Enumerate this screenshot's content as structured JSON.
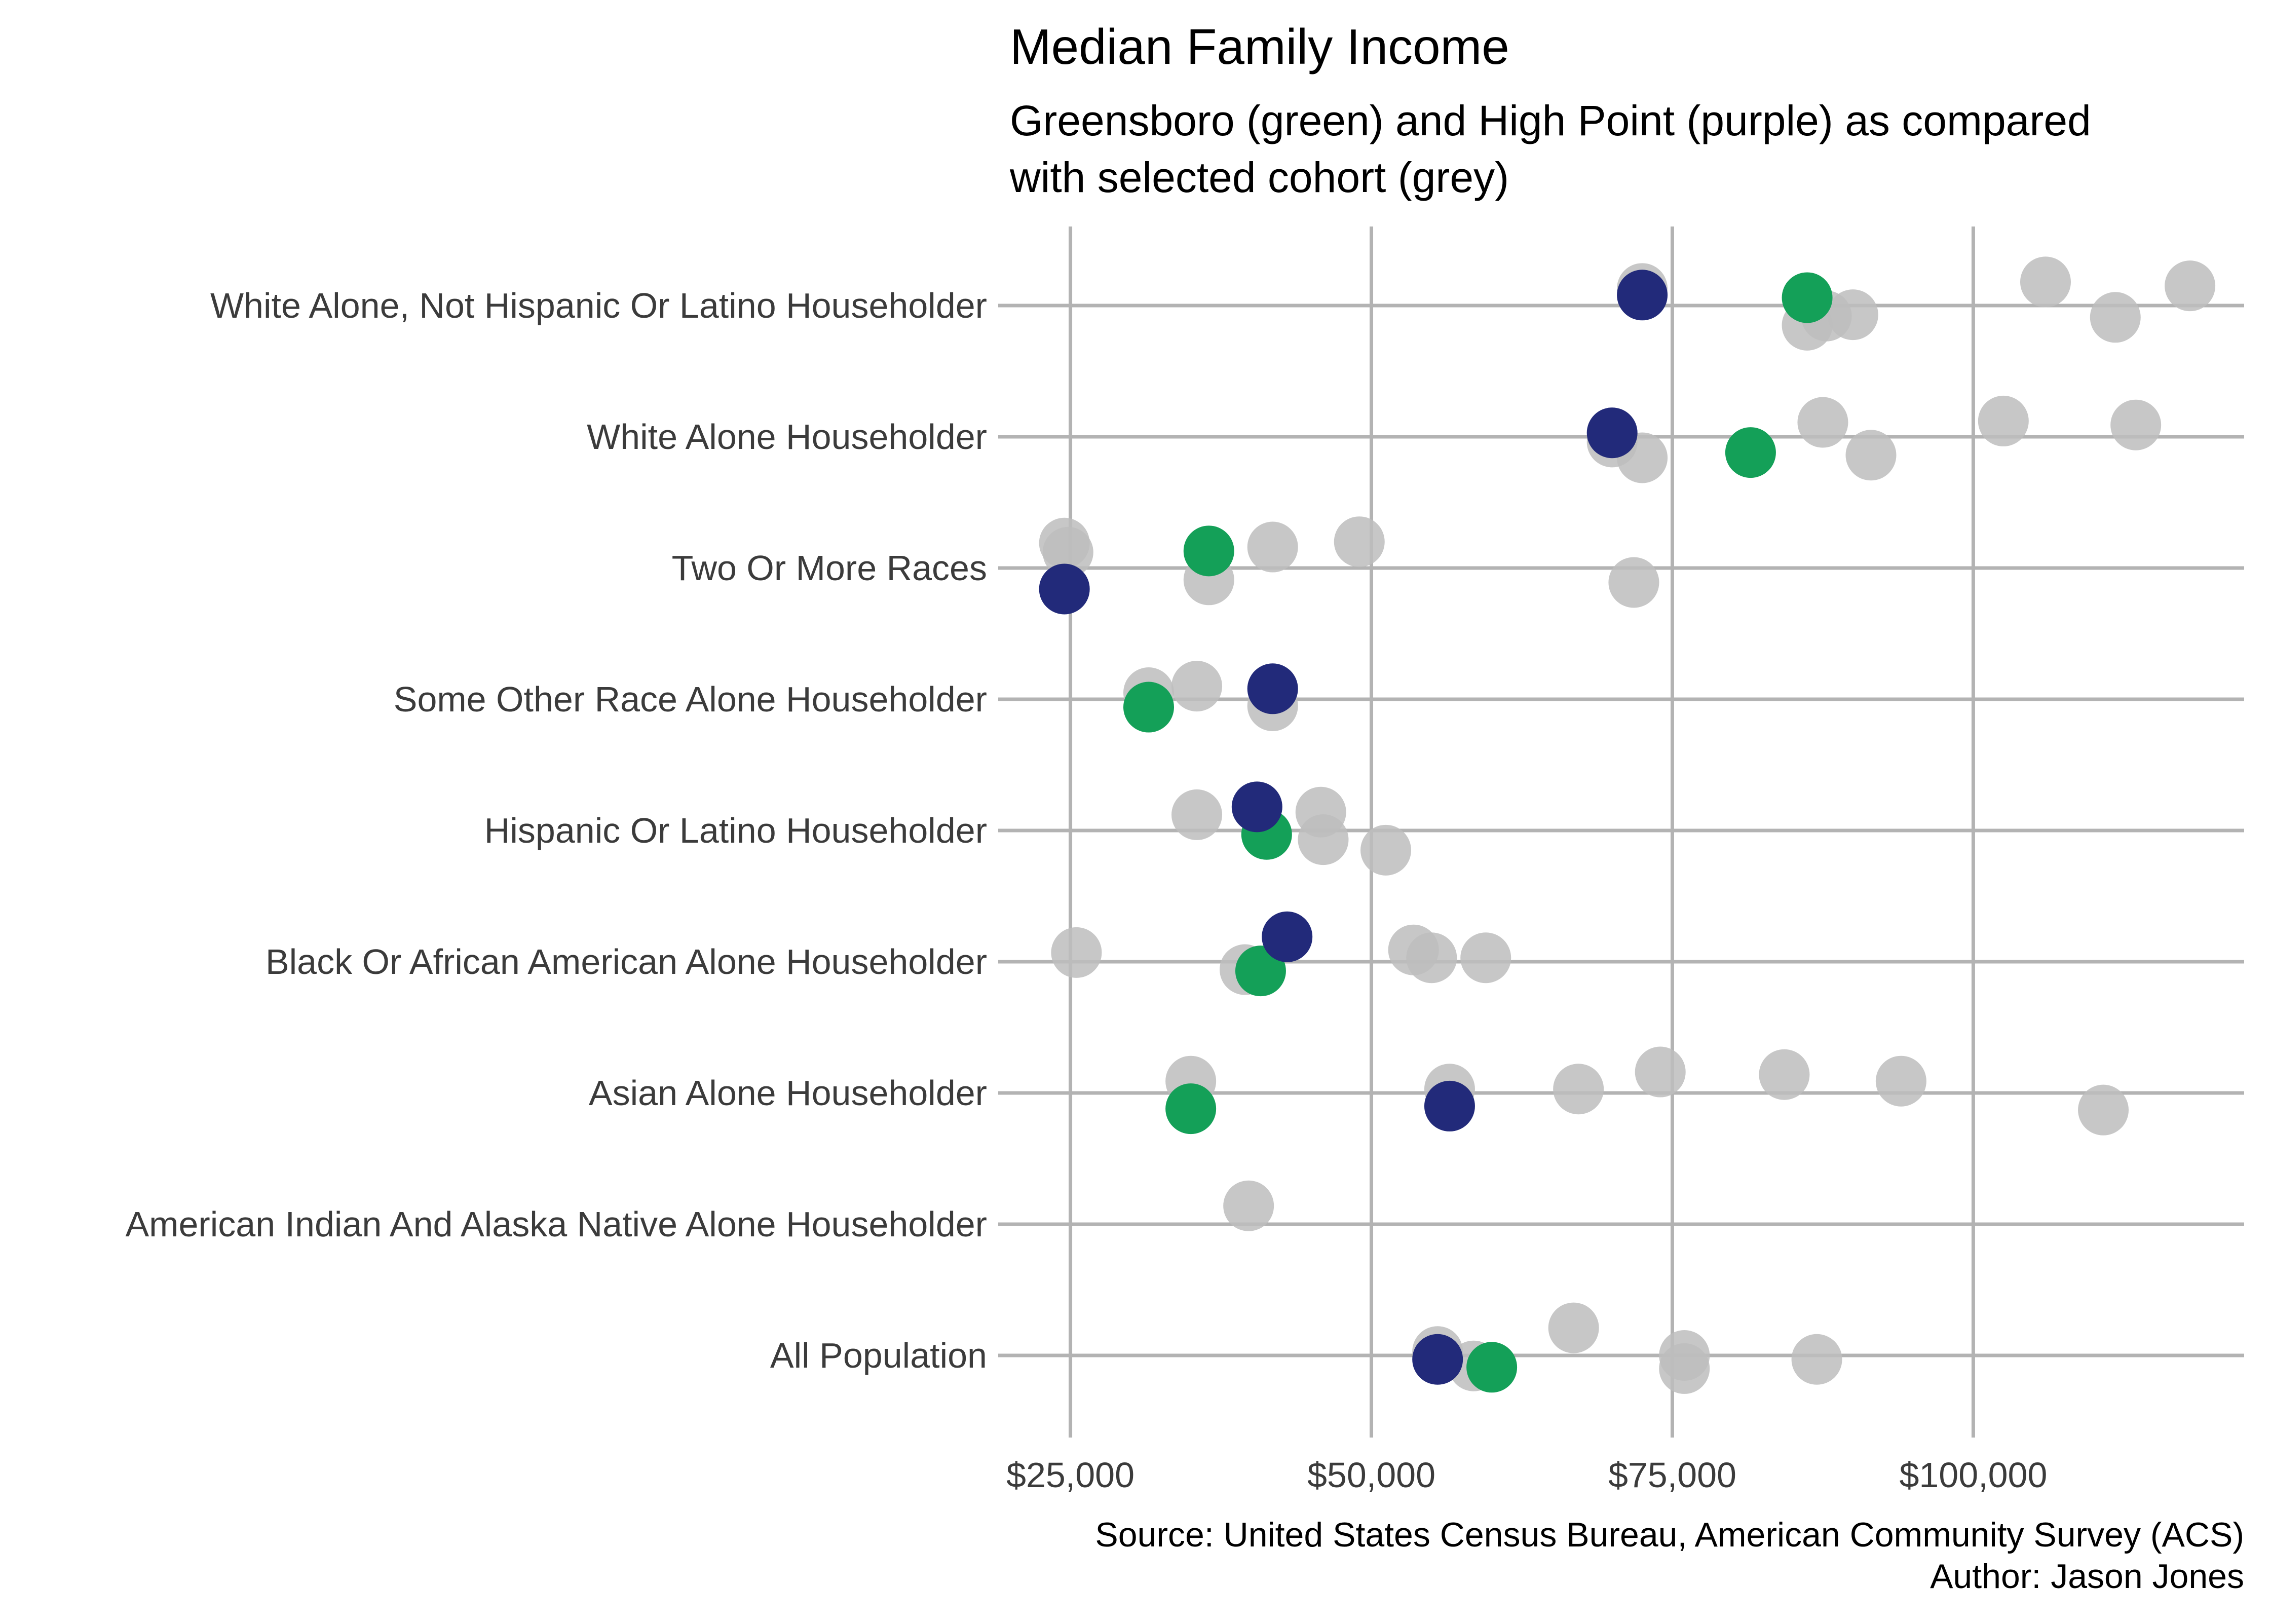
{
  "chart_data": {
    "type": "scatter",
    "title": "Median Family Income",
    "subtitle_lines": [
      "Greensboro (green) and High Point (purple) as compared",
      "with selected cohort (grey)"
    ],
    "caption_lines": [
      "Source: United States Census Bureau, American Community Survey (ACS)",
      "Author: Jason Jones"
    ],
    "categories": [
      "White Alone, Not Hispanic Or Latino Householder",
      "White Alone Householder",
      "Two Or More Races",
      "Some Other Race Alone Householder",
      "Hispanic Or Latino Householder",
      "Black Or African American Alone Householder",
      "Asian Alone Householder",
      "American Indian And Alaska Native Alone Householder",
      "All Population"
    ],
    "x_ticks": [
      {
        "value": 25000,
        "label": "$25,000"
      },
      {
        "value": 50000,
        "label": "$50,000"
      },
      {
        "value": 75000,
        "label": "$75,000"
      },
      {
        "value": 100000,
        "label": "$100,000"
      }
    ],
    "xlim": [
      19000,
      122500
    ],
    "grid": true,
    "colors": {
      "cohort": "#bdbdbd",
      "greensboro": "#14a058",
      "high_point": "#222a7a",
      "grid": "#b3b3b3"
    },
    "series": [
      {
        "key": "cohort",
        "color": "#bdbdbd",
        "points": [
          {
            "cat": 0,
            "x": 72500,
            "jitter": 0.13
          },
          {
            "cat": 0,
            "x": 86200,
            "jitter": -0.15
          },
          {
            "cat": 0,
            "x": 87800,
            "jitter": -0.08
          },
          {
            "cat": 0,
            "x": 90000,
            "jitter": -0.07
          },
          {
            "cat": 0,
            "x": 106000,
            "jitter": 0.18
          },
          {
            "cat": 0,
            "x": 111800,
            "jitter": -0.09
          },
          {
            "cat": 0,
            "x": 118000,
            "jitter": 0.15
          },
          {
            "cat": 1,
            "x": 70000,
            "jitter": -0.04
          },
          {
            "cat": 1,
            "x": 72500,
            "jitter": -0.16
          },
          {
            "cat": 1,
            "x": 87500,
            "jitter": 0.11
          },
          {
            "cat": 1,
            "x": 91500,
            "jitter": -0.14
          },
          {
            "cat": 1,
            "x": 102500,
            "jitter": 0.12
          },
          {
            "cat": 1,
            "x": 113500,
            "jitter": 0.09
          },
          {
            "cat": 2,
            "x": 24500,
            "jitter": 0.19
          },
          {
            "cat": 2,
            "x": 24800,
            "jitter": 0.12
          },
          {
            "cat": 2,
            "x": 36500,
            "jitter": -0.09
          },
          {
            "cat": 2,
            "x": 41800,
            "jitter": 0.16
          },
          {
            "cat": 2,
            "x": 49000,
            "jitter": 0.2
          },
          {
            "cat": 2,
            "x": 71800,
            "jitter": -0.11
          },
          {
            "cat": 3,
            "x": 31500,
            "jitter": 0.05
          },
          {
            "cat": 3,
            "x": 35500,
            "jitter": 0.1
          },
          {
            "cat": 3,
            "x": 41800,
            "jitter": -0.05
          },
          {
            "cat": 4,
            "x": 35500,
            "jitter": 0.12
          },
          {
            "cat": 4,
            "x": 45800,
            "jitter": 0.14
          },
          {
            "cat": 4,
            "x": 46000,
            "jitter": -0.07
          },
          {
            "cat": 4,
            "x": 51200,
            "jitter": -0.15
          },
          {
            "cat": 5,
            "x": 25500,
            "jitter": 0.07
          },
          {
            "cat": 5,
            "x": 39500,
            "jitter": -0.06
          },
          {
            "cat": 5,
            "x": 53500,
            "jitter": 0.09
          },
          {
            "cat": 5,
            "x": 55000,
            "jitter": 0.03
          },
          {
            "cat": 5,
            "x": 59500,
            "jitter": 0.03
          },
          {
            "cat": 6,
            "x": 35000,
            "jitter": 0.09
          },
          {
            "cat": 6,
            "x": 56500,
            "jitter": 0.03
          },
          {
            "cat": 6,
            "x": 67200,
            "jitter": 0.03
          },
          {
            "cat": 6,
            "x": 74000,
            "jitter": 0.16
          },
          {
            "cat": 6,
            "x": 84300,
            "jitter": 0.14
          },
          {
            "cat": 6,
            "x": 94000,
            "jitter": 0.09
          },
          {
            "cat": 6,
            "x": 110800,
            "jitter": -0.13
          },
          {
            "cat": 7,
            "x": 39800,
            "jitter": 0.14
          },
          {
            "cat": 8,
            "x": 55500,
            "jitter": 0.03
          },
          {
            "cat": 8,
            "x": 58500,
            "jitter": -0.08
          },
          {
            "cat": 8,
            "x": 66800,
            "jitter": 0.21
          },
          {
            "cat": 8,
            "x": 76000,
            "jitter": 0.0
          },
          {
            "cat": 8,
            "x": 76000,
            "jitter": -0.1
          },
          {
            "cat": 8,
            "x": 87000,
            "jitter": -0.03
          }
        ]
      },
      {
        "key": "greensboro",
        "color": "#14a058",
        "points": [
          {
            "cat": 0,
            "x": 86200,
            "jitter": 0.06
          },
          {
            "cat": 1,
            "x": 81500,
            "jitter": -0.12
          },
          {
            "cat": 2,
            "x": 36500,
            "jitter": 0.13
          },
          {
            "cat": 3,
            "x": 31500,
            "jitter": -0.06
          },
          {
            "cat": 4,
            "x": 41300,
            "jitter": -0.03
          },
          {
            "cat": 5,
            "x": 40800,
            "jitter": -0.07
          },
          {
            "cat": 6,
            "x": 35000,
            "jitter": -0.12
          },
          {
            "cat": 8,
            "x": 60000,
            "jitter": -0.09
          }
        ]
      },
      {
        "key": "high_point",
        "color": "#222a7a",
        "points": [
          {
            "cat": 0,
            "x": 72500,
            "jitter": 0.08
          },
          {
            "cat": 1,
            "x": 70000,
            "jitter": 0.03
          },
          {
            "cat": 2,
            "x": 24500,
            "jitter": -0.16
          },
          {
            "cat": 3,
            "x": 41800,
            "jitter": 0.08
          },
          {
            "cat": 4,
            "x": 40500,
            "jitter": 0.18
          },
          {
            "cat": 5,
            "x": 43000,
            "jitter": 0.19
          },
          {
            "cat": 6,
            "x": 56500,
            "jitter": -0.1
          },
          {
            "cat": 8,
            "x": 55500,
            "jitter": -0.03
          }
        ]
      }
    ]
  }
}
